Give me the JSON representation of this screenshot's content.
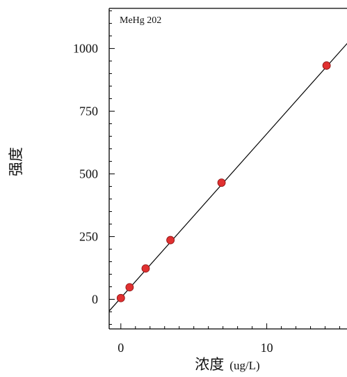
{
  "chart_data": {
    "type": "scatter",
    "annotation": "MeHg 202",
    "xlabel": "浓度",
    "xlabel_unit": "(ug/L)",
    "ylabel": "强度",
    "xlim": [
      -0.8,
      15.5
    ],
    "ylim": [
      -118,
      1160
    ],
    "x_ticks": [
      0,
      10
    ],
    "y_ticks": [
      0,
      250,
      500,
      750,
      1000
    ],
    "x_minor_step": 1,
    "y_minor_step": 50,
    "grid": false,
    "legend": "none",
    "points": [
      {
        "x": 0,
        "y": 5
      },
      {
        "x": 0.6,
        "y": 48
      },
      {
        "x": 1.7,
        "y": 123
      },
      {
        "x": 3.4,
        "y": 236
      },
      {
        "x": 6.9,
        "y": 465
      },
      {
        "x": 14.1,
        "y": 932
      }
    ],
    "fit_line": {
      "slope": 65.4,
      "intercept": 5.7
    },
    "colors": {
      "point": "#e03030",
      "point_edge": "#8a1212",
      "line": "#000000",
      "axis": "#000000"
    }
  }
}
